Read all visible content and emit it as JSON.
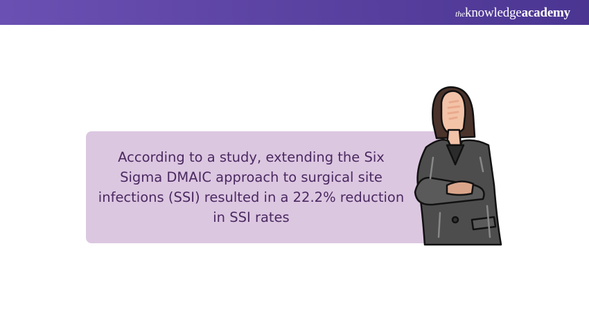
{
  "brand": {
    "logo_prefix": "the",
    "logo_main": "knowledge",
    "logo_suffix": "academy",
    "header_color": "#5a42a3"
  },
  "card": {
    "text": "According to a study, extending the Six Sigma DMAIC approach to surgical site infections (SSI) resulted in a 22.2% reduction in SSI rates",
    "background": "#dcc7e1",
    "text_color": "#4a2960"
  },
  "illustration": {
    "icon": "businesswoman-arms-crossed-icon"
  }
}
